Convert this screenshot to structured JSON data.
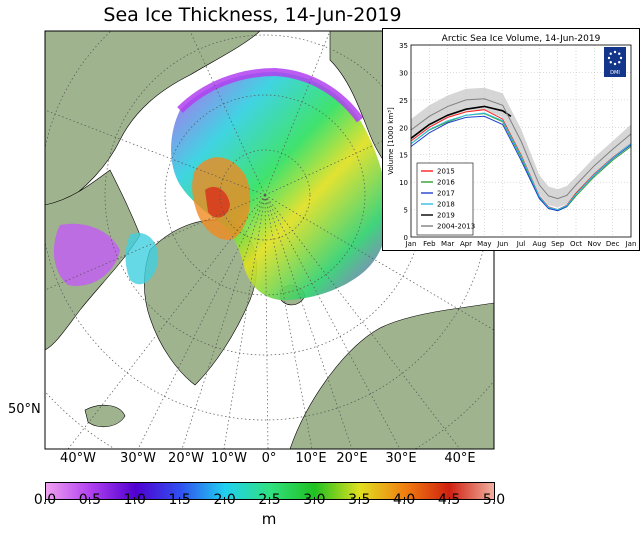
{
  "map": {
    "title": "Sea Ice Thickness, 14-Jun-2019",
    "latitude_label": "50°N",
    "longitude_labels": [
      "40°W",
      "30°W",
      "20°W",
      "10°W",
      "0°",
      "10°E",
      "20°E",
      "30°E",
      "40°E"
    ],
    "colors": {
      "ocean": "#ffffff",
      "land": "#9fb38f",
      "coastline": "#000000"
    }
  },
  "colorbar": {
    "unit": "m",
    "ticks": [
      "0.0",
      "0.5",
      "1.0",
      "1.5",
      "2.0",
      "2.5",
      "3.0",
      "3.5",
      "4.0",
      "4.5",
      "5.0"
    ],
    "range": [
      0,
      5
    ],
    "colormap": [
      "#f0a0f0",
      "#b040f0",
      "#5000d0",
      "#3050f0",
      "#20d0f0",
      "#30e080",
      "#20c020",
      "#e0e020",
      "#f08010",
      "#d02010",
      "#f0b0a0"
    ]
  },
  "chart_data": {
    "type": "line",
    "title": "Arctic Sea Ice Volume, 14-Jun-2019",
    "ylabel": "Volume  [1000 km³]",
    "xlabel": "",
    "x_categories": [
      "Jan",
      "Feb",
      "Mar",
      "Apr",
      "May",
      "Jun",
      "Jul",
      "Aug",
      "Sep",
      "Oct",
      "Nov",
      "Dec",
      "Jan"
    ],
    "yticks": [
      "0",
      "5",
      "10",
      "15",
      "20",
      "25",
      "30",
      "35"
    ],
    "ylim": [
      0,
      35
    ],
    "grid": true,
    "legend_position": "bottom-left",
    "logo_text": "DMI",
    "series": [
      {
        "name": "2015",
        "color": "#ff2020",
        "x": [
          0,
          1,
          2,
          3,
          4,
          5,
          6,
          7,
          7.5,
          8,
          8.5,
          9,
          10,
          11,
          12
        ],
        "y": [
          17.5,
          20,
          21.8,
          22.8,
          23.2,
          21.5,
          15,
          7.5,
          5.5,
          5,
          5.8,
          8,
          11.5,
          14.5,
          17
        ]
      },
      {
        "name": "2016",
        "color": "#30a030",
        "x": [
          0,
          1,
          2,
          3,
          4,
          5,
          6,
          7,
          7.5,
          8,
          8.5,
          9,
          10,
          11,
          12
        ],
        "y": [
          17,
          19.5,
          21,
          22.2,
          22.5,
          21,
          14.5,
          7.2,
          5.3,
          4.8,
          5.5,
          7.5,
          11,
          14,
          16.5
        ]
      },
      {
        "name": "2017",
        "color": "#2040d0",
        "x": [
          0,
          1,
          2,
          3,
          4,
          5,
          6,
          7,
          7.5,
          8,
          8.5,
          9,
          10,
          11,
          12
        ],
        "y": [
          16.5,
          19,
          20.8,
          21.8,
          22,
          20.5,
          14,
          7,
          5.2,
          4.8,
          5.6,
          7.8,
          11.3,
          14.3,
          16.8
        ]
      },
      {
        "name": "2018",
        "color": "#30c0e0",
        "x": [
          0,
          1,
          2,
          3,
          4,
          5,
          6,
          7,
          7.5,
          8,
          8.5,
          9,
          10,
          11,
          12
        ],
        "y": [
          17,
          19.6,
          21.2,
          22.2,
          22.6,
          21.2,
          14.8,
          7.4,
          5.4,
          5,
          5.7,
          7.8,
          11.4,
          14.4,
          17
        ]
      },
      {
        "name": "2019",
        "color": "#000000",
        "x": [
          0,
          1,
          2,
          3,
          4,
          5,
          5.45
        ],
        "y": [
          18,
          20.5,
          22.2,
          23.3,
          23.8,
          23,
          22
        ]
      },
      {
        "name": "2004-2013",
        "color": "#808080",
        "x": [
          0,
          1,
          2,
          3,
          4,
          5,
          6,
          7,
          7.5,
          8,
          8.5,
          9,
          10,
          11,
          12
        ],
        "y": [
          19.5,
          22,
          23.8,
          25,
          25.2,
          24,
          17.5,
          9.5,
          7.5,
          7,
          7.6,
          9.5,
          13,
          16,
          18.8
        ]
      }
    ],
    "band": {
      "x": [
        0,
        1,
        2,
        3,
        4,
        5,
        6,
        7,
        7.5,
        8,
        8.5,
        9,
        10,
        11,
        12
      ],
      "low": [
        17.5,
        20,
        21.8,
        23,
        23.2,
        21.8,
        15.3,
        7.8,
        5.8,
        5.4,
        6,
        8,
        11.5,
        14.5,
        17
      ],
      "high": [
        21.5,
        24,
        25.8,
        27,
        27.2,
        26.2,
        19.7,
        11.3,
        9.2,
        8.7,
        9.3,
        11,
        14.5,
        17.5,
        20.5
      ]
    }
  }
}
